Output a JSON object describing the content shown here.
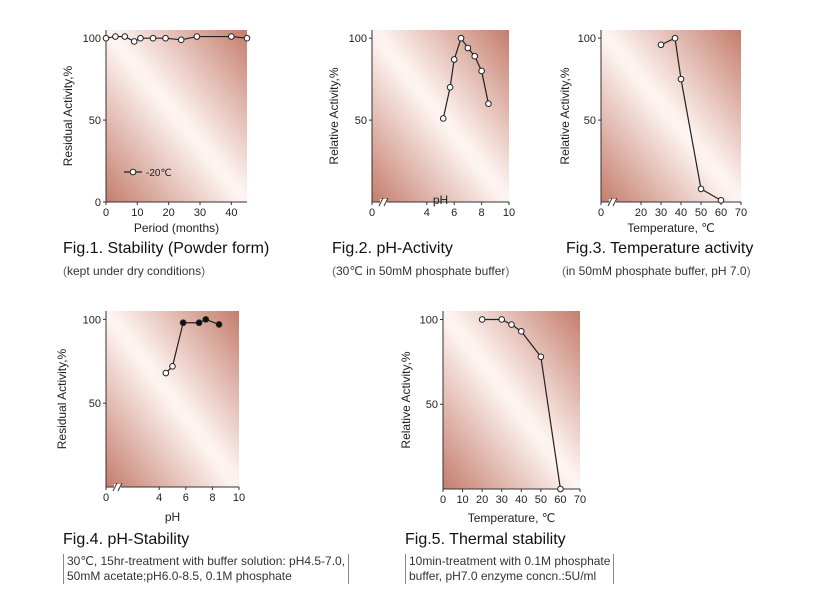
{
  "chart_data": [
    {
      "id": "fig1",
      "type": "line",
      "title": "Fig.1. Stability (Powder form)",
      "note": "kept under dry conditions",
      "xlabel": "Period (months)",
      "ylabel": "Residual Activity,%",
      "xlim": [
        0,
        45
      ],
      "ylim": [
        0,
        105
      ],
      "xticks": [
        0,
        10,
        20,
        30,
        40
      ],
      "yticks": [
        0,
        50,
        100
      ],
      "axis_break": false,
      "series": [
        {
          "name": "-20℃",
          "marker": "open",
          "x": [
            0,
            3,
            6,
            9,
            11,
            15,
            19,
            24,
            29,
            40,
            45
          ],
          "y": [
            100,
            101,
            101,
            98,
            100,
            100,
            100,
            99,
            101,
            101,
            100
          ]
        }
      ],
      "legend": {
        "label": "-20℃",
        "position": "lower-left"
      }
    },
    {
      "id": "fig2",
      "type": "line",
      "title": "Fig.2. pH-Activity",
      "note": "30℃ in 50mM phosphate buffer",
      "xlabel": "pH",
      "ylabel": "Relative Activity,%",
      "xlim": [
        0,
        10
      ],
      "ylim": [
        0,
        105
      ],
      "xticks": [
        0,
        4,
        6,
        8,
        10
      ],
      "yticks": [
        50,
        100
      ],
      "axis_break": true,
      "series": [
        {
          "name": "pH activity",
          "marker": "open",
          "x": [
            5.2,
            5.7,
            6.0,
            6.5,
            7.0,
            7.5,
            8.0,
            8.5
          ],
          "y": [
            51,
            70,
            87,
            100,
            94,
            89,
            80,
            60
          ]
        }
      ]
    },
    {
      "id": "fig3",
      "type": "line",
      "title": "Fig.3. Temperature activity",
      "note": "in 50mM phosphate buffer, pH 7.0",
      "xlabel": "Temperature, ℃",
      "ylabel": "Relative Activity,%",
      "xlim": [
        0,
        70
      ],
      "ylim": [
        0,
        105
      ],
      "xticks": [
        0,
        20,
        30,
        40,
        50,
        60,
        70
      ],
      "yticks": [
        50,
        100
      ],
      "axis_break": true,
      "series": [
        {
          "name": "temperature activity",
          "marker": "open",
          "x": [
            30,
            37,
            40,
            50,
            60
          ],
          "y": [
            96,
            100,
            75,
            8,
            1
          ]
        }
      ]
    },
    {
      "id": "fig4",
      "type": "line",
      "title": "Fig.4. pH-Stability",
      "note_lines": [
        "30℃, 15hr-treatment with buffer solution: pH4.5-7.0,",
        "50mM acetate;pH6.0-8.5, 0.1M phosphate"
      ],
      "xlabel": "pH",
      "ylabel": "Residual Activity,%",
      "xlim": [
        0,
        10
      ],
      "ylim": [
        0,
        105
      ],
      "xticks": [
        0,
        4,
        6,
        8,
        10
      ],
      "yticks": [
        50,
        100
      ],
      "axis_break": true,
      "series": [
        {
          "name": "acetate",
          "marker": "open",
          "x": [
            4.5,
            5.0
          ],
          "y": [
            68,
            72
          ]
        },
        {
          "name": "phosphate",
          "marker": "filled",
          "x": [
            5.8,
            7.0,
            7.5,
            8.5
          ],
          "y": [
            98,
            98,
            100,
            97
          ]
        }
      ],
      "connector": {
        "x": [
          5.0,
          5.8
        ],
        "y": [
          72,
          98
        ]
      }
    },
    {
      "id": "fig5",
      "type": "line",
      "title": "Fig.5. Thermal stability",
      "note_lines": [
        "10min-treatment with 0.1M phosphate",
        "buffer, pH7.0 enzyme concn.:5U/ml"
      ],
      "xlabel": "Temperature, ℃",
      "ylabel": "Relative Activity,%",
      "xlim": [
        0,
        70
      ],
      "ylim": [
        0,
        105
      ],
      "xticks": [
        0,
        10,
        20,
        30,
        40,
        50,
        60,
        70
      ],
      "yticks": [
        50,
        100
      ],
      "axis_break": false,
      "series": [
        {
          "name": "thermal stability",
          "marker": "open",
          "x": [
            20,
            30,
            35,
            40,
            50,
            60
          ],
          "y": [
            100,
            100,
            97,
            93,
            78,
            0
          ]
        }
      ]
    }
  ]
}
